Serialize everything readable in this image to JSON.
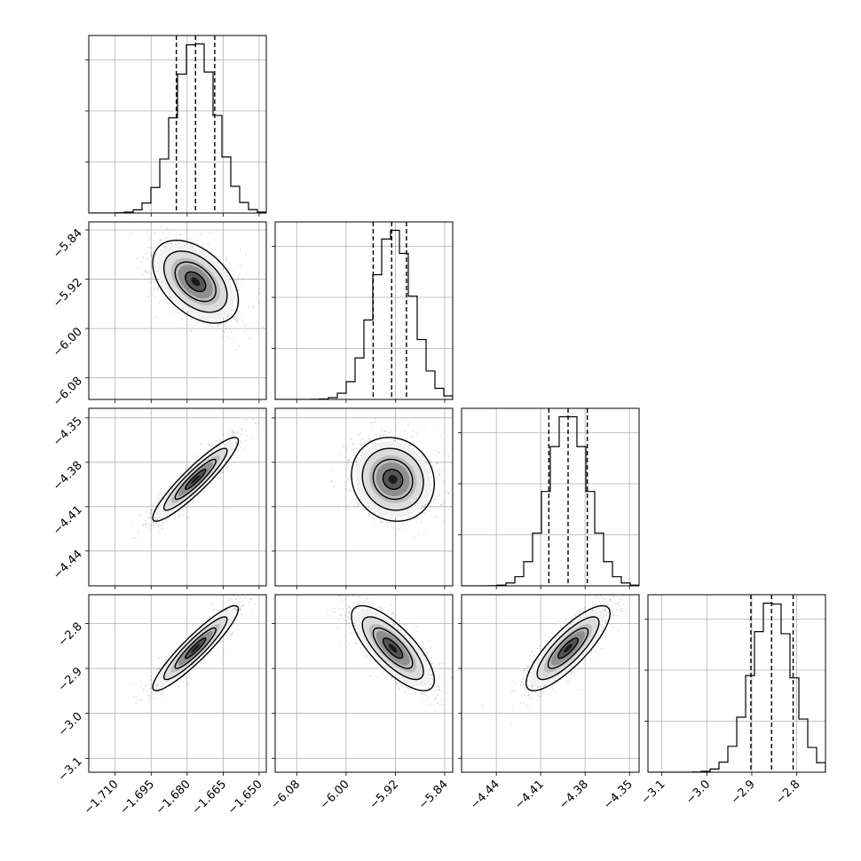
{
  "chart_data": {
    "type": "corner",
    "grid": true,
    "colors": {
      "line": "#000000",
      "grid": "#b0b0b0",
      "frame": "#000000",
      "background": "#ffffff"
    },
    "parameters": [
      {
        "mean": -1.6765,
        "sd": 0.0085,
        "lim": [
          -1.721,
          -1.647
        ],
        "ticks": [
          -1.71,
          -1.695,
          -1.68,
          -1.665,
          -1.65
        ],
        "tick_labels": [
          "−1.710",
          "−1.695",
          "−1.680",
          "−1.665",
          "−1.650"
        ],
        "quantiles": [
          -1.6845,
          -1.6765,
          -1.6685
        ]
      },
      {
        "mean": -5.924,
        "sd": 0.032,
        "lim": [
          -6.115,
          -5.827
        ],
        "ticks": [
          -6.08,
          -6.0,
          -5.92,
          -5.84
        ],
        "tick_labels": [
          "−6.08",
          "−6.00",
          "−5.92",
          "−5.84"
        ],
        "quantiles": [
          -5.956,
          -5.926,
          -5.902
        ]
      },
      {
        "mean": -4.3915,
        "sd": 0.0135,
        "lim": [
          -4.4635,
          -4.3435
        ],
        "ticks": [
          -4.44,
          -4.41,
          -4.38,
          -4.35
        ],
        "tick_labels": [
          "−4.44",
          "−4.41",
          "−4.38",
          "−4.35"
        ],
        "quantiles": [
          -4.4045,
          -4.3915,
          -4.3785
        ]
      },
      {
        "mean": -2.855,
        "sd": 0.045,
        "lim": [
          -3.131,
          -2.736
        ],
        "ticks": [
          -3.1,
          -3.0,
          -2.9,
          -2.8
        ],
        "tick_labels": [
          "−3.1",
          "−3.0",
          "−2.9",
          "−2.8"
        ],
        "quantiles": [
          -2.902,
          -2.856,
          -2.808
        ]
      }
    ],
    "correlations": [
      [
        1.0,
        -0.45,
        0.92,
        0.92
      ],
      [
        -0.45,
        1.0,
        -0.1,
        -0.75
      ],
      [
        0.92,
        -0.1,
        1.0,
        0.82
      ],
      [
        0.92,
        -0.75,
        0.82,
        1.0
      ]
    ],
    "histogram_bins": 20
  }
}
